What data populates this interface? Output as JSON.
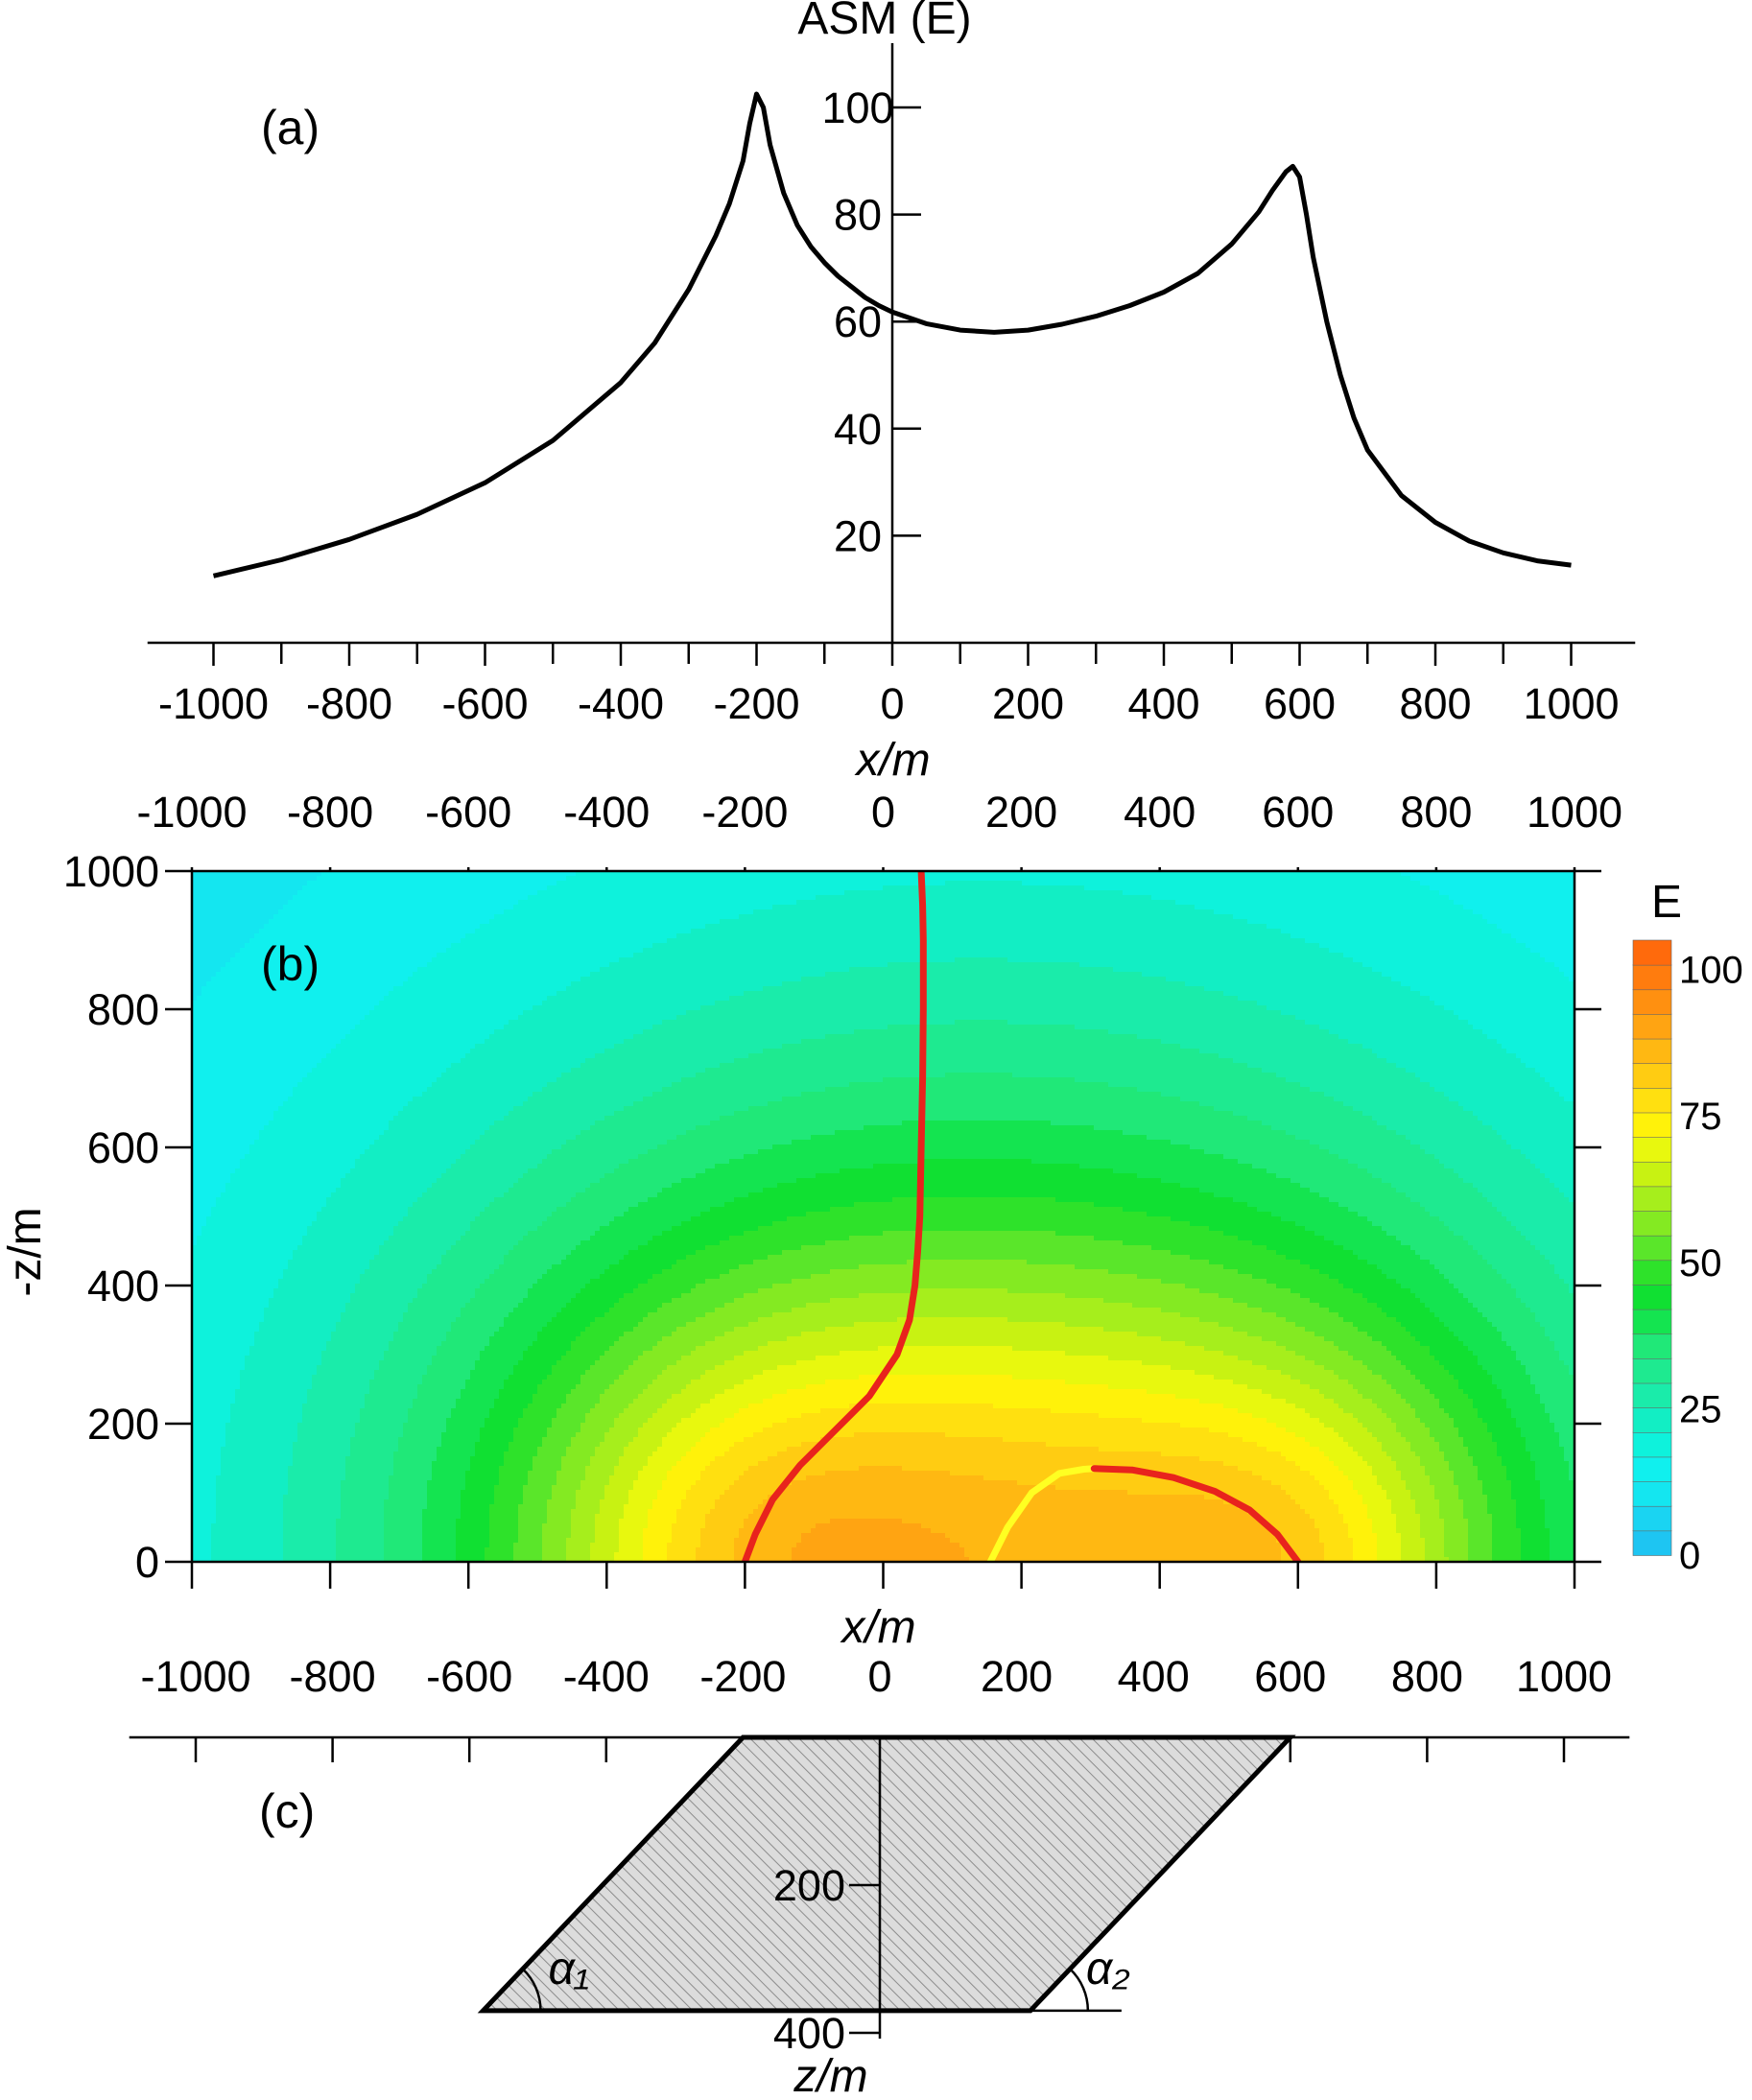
{
  "chart_data": [
    {
      "panel": "(a)",
      "type": "line",
      "ylabel": "ASM (E)",
      "xlabel": "x/m",
      "xlim": [
        -1100,
        1100
      ],
      "ylim": [
        0,
        110
      ],
      "xticks": [
        -1000,
        -800,
        -600,
        -400,
        -200,
        0,
        200,
        400,
        600,
        800,
        1000
      ],
      "yticks": [
        20,
        40,
        60,
        80,
        100
      ],
      "series": [
        {
          "x": [
            -1000,
            -900,
            -800,
            -700,
            -600,
            -500,
            -400,
            -350,
            -300,
            -260,
            -240,
            -220,
            -210,
            -200,
            -190,
            -180,
            -160,
            -140,
            -120,
            -100,
            -80,
            -60,
            -40,
            -20,
            0,
            50,
            100,
            150,
            200,
            250,
            300,
            350,
            400,
            450,
            500,
            540,
            560,
            580,
            590,
            600,
            610,
            620,
            640,
            660,
            680,
            700,
            750,
            800,
            850,
            900,
            950,
            1000
          ],
          "y": [
            12.5,
            15.5,
            19.3,
            24.0,
            29.9,
            37.8,
            48.6,
            56.0,
            66.0,
            76.0,
            82.0,
            90.0,
            97.0,
            102.5,
            100.0,
            93.0,
            84.0,
            78.0,
            74.0,
            71.0,
            68.5,
            66.5,
            64.5,
            63.0,
            61.8,
            59.6,
            58.4,
            58.0,
            58.4,
            59.5,
            61.0,
            63.0,
            65.5,
            69.0,
            74.5,
            80.5,
            84.5,
            88.0,
            89.0,
            87.0,
            80.0,
            72.0,
            60.0,
            50.0,
            42.0,
            36.0,
            27.5,
            22.5,
            19.0,
            16.8,
            15.3,
            14.5
          ]
        }
      ]
    },
    {
      "panel": "(b)",
      "type": "heatmap",
      "xlabel": "x/m",
      "ylabel": "-z/m",
      "xlim": [
        -1000,
        1000
      ],
      "ylim": [
        0,
        1000
      ],
      "xticks": [
        -1000,
        -800,
        -600,
        -400,
        -200,
        0,
        200,
        400,
        600,
        800,
        1000
      ],
      "yticks": [
        0,
        200,
        400,
        600,
        800,
        1000
      ],
      "colorbar": {
        "label": "E",
        "ticks": [
          0,
          25,
          50,
          75,
          100
        ],
        "range": [
          0,
          105
        ],
        "colors": [
          "#1ec5f2",
          "#1ad4f2",
          "#14e6f0",
          "#10f0ee",
          "#0ef2dc",
          "#12eec4",
          "#1aecaa",
          "#1eea90",
          "#20e878",
          "#14e450",
          "#10e032",
          "#2ee22a",
          "#5ae62a",
          "#84ea22",
          "#a6ee1c",
          "#c8f212",
          "#e8f80e",
          "#fff20a",
          "#ffe010",
          "#ffcc12",
          "#ffb812",
          "#ffa412",
          "#ff9010",
          "#ff7c0e",
          "#ff6a0c"
        ]
      },
      "annotations": [
        {
          "name": "max-line-left",
          "color": "#e8231d",
          "x": [
            -200,
            -185,
            -160,
            -120,
            -70,
            -20,
            20,
            38,
            46,
            50,
            53,
            55,
            57,
            58,
            58,
            57,
            55
          ],
          "y": [
            0,
            40,
            90,
            140,
            190,
            240,
            300,
            350,
            400,
            450,
            500,
            600,
            700,
            800,
            900,
            950,
            1000
          ]
        },
        {
          "name": "min-line-yellow",
          "color": "#ffff22",
          "x": [
            155,
            180,
            215,
            255,
            290,
            305
          ],
          "y": [
            0,
            50,
            100,
            128,
            134,
            135
          ]
        },
        {
          "name": "max-line-right",
          "color": "#e8231d",
          "x": [
            305,
            360,
            420,
            480,
            530,
            570,
            600
          ],
          "y": [
            135,
            133,
            122,
            102,
            75,
            40,
            0
          ]
        }
      ]
    },
    {
      "panel": "(c)",
      "type": "diagram",
      "xlabel": "x/m",
      "ylabel": "z/m",
      "xticks": [
        -1000,
        -800,
        -600,
        -400,
        -200,
        0,
        200,
        400,
        600,
        800,
        1000
      ],
      "zticks": [
        200,
        400
      ],
      "body": {
        "top_left": [
          -200,
          0
        ],
        "top_right": [
          600,
          0
        ],
        "bottom_right": [
          220,
          370
        ],
        "bottom_left": [
          -580,
          370
        ]
      },
      "angle_labels": [
        "α₁",
        "α₂"
      ]
    }
  ]
}
